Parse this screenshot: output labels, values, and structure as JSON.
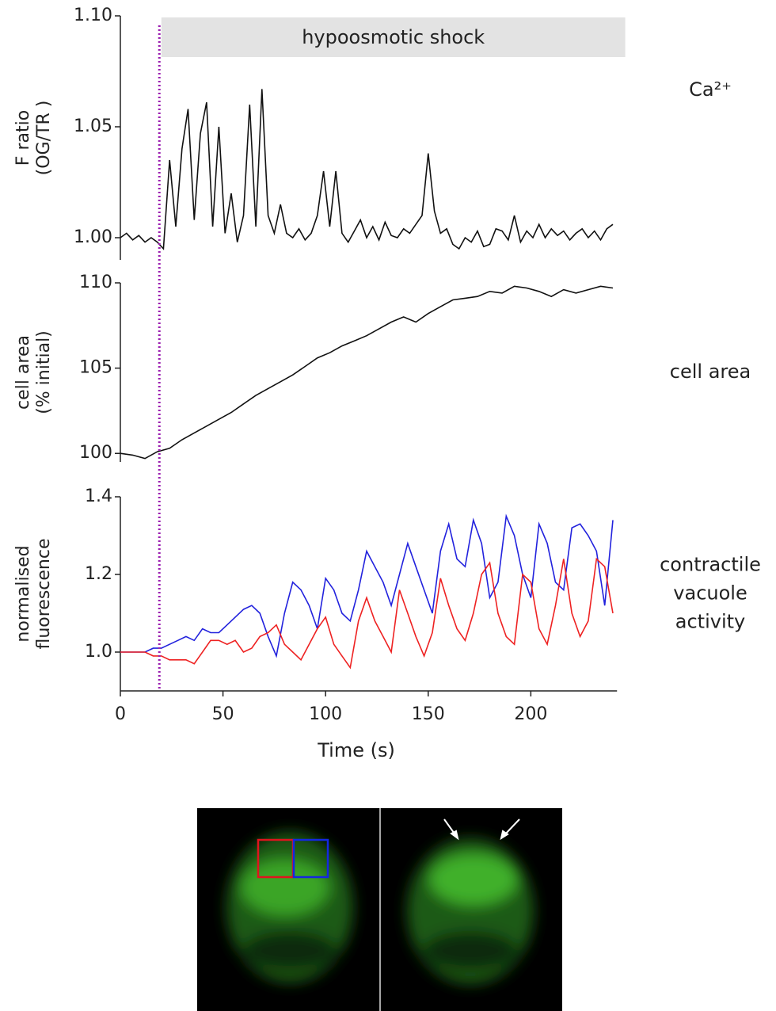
{
  "chart_data": [
    {
      "type": "line",
      "ylabel": [
        "F ratio",
        "(OG/TR )"
      ],
      "side_label": [
        "Ca²⁺"
      ],
      "xlim": [
        0,
        245
      ],
      "ylim": [
        0.99,
        1.1
      ],
      "yticks": [
        {
          "value": 1.0,
          "label": "1.00"
        },
        1.05,
        {
          "value": 1.1,
          "label": "1.10"
        }
      ],
      "x": [
        0,
        3,
        6,
        9,
        12,
        15,
        18,
        21,
        24,
        27,
        30,
        33,
        36,
        39,
        42,
        45,
        48,
        51,
        54,
        57,
        60,
        63,
        66,
        69,
        72,
        75,
        78,
        81,
        84,
        87,
        90,
        93,
        96,
        99,
        102,
        105,
        108,
        111,
        114,
        117,
        120,
        123,
        126,
        129,
        132,
        135,
        138,
        141,
        144,
        147,
        150,
        153,
        156,
        159,
        162,
        165,
        168,
        171,
        174,
        177,
        180,
        183,
        186,
        189,
        192,
        195,
        198,
        201,
        204,
        207,
        210,
        213,
        216,
        219,
        222,
        225,
        228,
        231,
        234,
        237,
        240
      ],
      "series": [
        {
          "color": "#111111",
          "values": [
            1.0,
            1.002,
            0.999,
            1.001,
            0.998,
            1.0,
            0.998,
            0.995,
            1.035,
            1.005,
            1.04,
            1.058,
            1.008,
            1.047,
            1.061,
            1.005,
            1.05,
            1.002,
            1.02,
            0.998,
            1.01,
            1.06,
            1.005,
            1.067,
            1.01,
            1.002,
            1.015,
            1.002,
            1.0,
            1.004,
            0.999,
            1.002,
            1.01,
            1.03,
            1.005,
            1.03,
            1.002,
            0.998,
            1.003,
            1.008,
            1.0,
            1.005,
            0.999,
            1.007,
            1.001,
            1.0,
            1.004,
            1.002,
            1.006,
            1.01,
            1.038,
            1.012,
            1.002,
            1.004,
            0.997,
            0.995,
            1.0,
            0.998,
            1.003,
            0.996,
            0.997,
            1.004,
            1.003,
            0.999,
            1.01,
            0.998,
            1.003,
            1.0,
            1.006,
            1.0,
            1.004,
            1.001,
            1.003,
            0.999,
            1.002,
            1.004,
            1.0,
            1.003,
            0.999,
            1.004,
            1.006
          ]
        }
      ]
    },
    {
      "type": "line",
      "ylabel": [
        "cell area",
        "(% initial)"
      ],
      "side_label": [
        "cell area"
      ],
      "xlim": [
        0,
        245
      ],
      "ylim": [
        99.5,
        110
      ],
      "yticks": [
        100,
        105,
        110
      ],
      "x": [
        0,
        6,
        12,
        18,
        24,
        30,
        36,
        42,
        48,
        54,
        60,
        66,
        72,
        78,
        84,
        90,
        96,
        102,
        108,
        114,
        120,
        126,
        132,
        138,
        144,
        150,
        156,
        162,
        168,
        174,
        180,
        186,
        192,
        198,
        204,
        210,
        216,
        222,
        228,
        234,
        240
      ],
      "series": [
        {
          "color": "#111111",
          "values": [
            100.0,
            99.9,
            99.7,
            100.1,
            100.3,
            100.8,
            101.2,
            101.6,
            102.0,
            102.4,
            102.9,
            103.4,
            103.8,
            104.2,
            104.6,
            105.1,
            105.6,
            105.9,
            106.3,
            106.6,
            106.9,
            107.3,
            107.7,
            108.0,
            107.7,
            108.2,
            108.6,
            109.0,
            109.1,
            109.2,
            109.5,
            109.4,
            109.8,
            109.7,
            109.5,
            109.2,
            109.6,
            109.4,
            109.6,
            109.8,
            109.7
          ]
        }
      ]
    },
    {
      "type": "line",
      "ylabel": [
        "normalised",
        "fluorescence"
      ],
      "side_label": [
        "contractile",
        "vacuole",
        "activity"
      ],
      "xlabel": "Time (s)",
      "xlim": [
        0,
        245
      ],
      "xticks": [
        0,
        50,
        100,
        150,
        200
      ],
      "ylim": [
        0.9,
        1.4
      ],
      "yticks": [
        {
          "value": 1.0,
          "label": "1.0"
        },
        1.2,
        1.4
      ],
      "x": [
        0,
        4,
        8,
        12,
        16,
        20,
        24,
        28,
        32,
        36,
        40,
        44,
        48,
        52,
        56,
        60,
        64,
        68,
        72,
        76,
        80,
        84,
        88,
        92,
        96,
        100,
        104,
        108,
        112,
        116,
        120,
        124,
        128,
        132,
        136,
        140,
        144,
        148,
        152,
        156,
        160,
        164,
        168,
        172,
        176,
        180,
        184,
        188,
        192,
        196,
        200,
        204,
        208,
        212,
        216,
        220,
        224,
        228,
        232,
        236,
        240
      ],
      "series": [
        {
          "color": "#2222dd",
          "values": [
            1.0,
            1.0,
            1.0,
            1.0,
            1.01,
            1.01,
            1.02,
            1.03,
            1.04,
            1.03,
            1.06,
            1.05,
            1.05,
            1.07,
            1.09,
            1.11,
            1.12,
            1.1,
            1.04,
            0.99,
            1.1,
            1.18,
            1.16,
            1.12,
            1.06,
            1.19,
            1.16,
            1.1,
            1.08,
            1.16,
            1.26,
            1.22,
            1.18,
            1.12,
            1.2,
            1.28,
            1.22,
            1.16,
            1.1,
            1.26,
            1.33,
            1.24,
            1.22,
            1.34,
            1.28,
            1.14,
            1.18,
            1.35,
            1.3,
            1.2,
            1.14,
            1.33,
            1.28,
            1.18,
            1.16,
            1.32,
            1.33,
            1.3,
            1.26,
            1.12,
            1.34
          ]
        },
        {
          "color": "#ee2222",
          "values": [
            1.0,
            1.0,
            1.0,
            1.0,
            0.99,
            0.99,
            0.98,
            0.98,
            0.98,
            0.97,
            1.0,
            1.03,
            1.03,
            1.02,
            1.03,
            1.0,
            1.01,
            1.04,
            1.05,
            1.07,
            1.02,
            1.0,
            0.98,
            1.02,
            1.06,
            1.09,
            1.02,
            0.99,
            0.96,
            1.08,
            1.14,
            1.08,
            1.04,
            1.0,
            1.16,
            1.1,
            1.04,
            0.99,
            1.05,
            1.19,
            1.12,
            1.06,
            1.03,
            1.1,
            1.2,
            1.23,
            1.1,
            1.04,
            1.02,
            1.2,
            1.18,
            1.06,
            1.02,
            1.12,
            1.24,
            1.1,
            1.04,
            1.08,
            1.24,
            1.22,
            1.1
          ]
        }
      ]
    }
  ],
  "shock": {
    "label": "hypoosmotic shock",
    "start": 20,
    "end": 246
  },
  "stimulus_x": 19
}
